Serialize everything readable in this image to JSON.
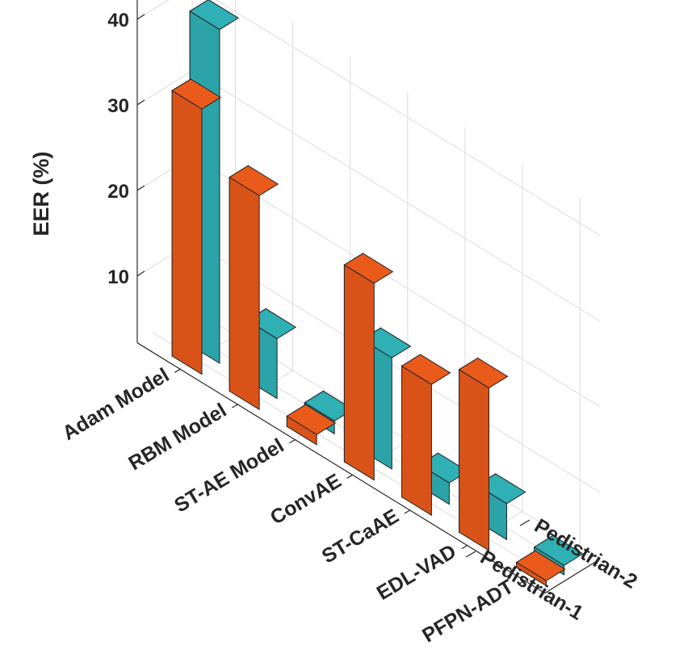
{
  "chart_data": {
    "type": "bar3d",
    "title": "",
    "ylabel": "EER (%)",
    "categories": [
      "Adam Model",
      "RBM Model",
      "ST-AE Model",
      "ConvAE",
      "ST-CaAE",
      "EDL-VAD",
      "PFPN-ADT"
    ],
    "series": [
      {
        "name": "Pedistrian-1",
        "color": "#d95319",
        "values": [
          31,
          25,
          1.2,
          23,
          15.3,
          19,
          0.6
        ]
      },
      {
        "name": "Pedistrian-2",
        "color": "#2ba3a8",
        "values": [
          39,
          7,
          1.5,
          13,
          2.5,
          4.2,
          1.1
        ]
      }
    ],
    "zticks": [
      10,
      20,
      30,
      40
    ],
    "zlim": [
      0,
      43
    ],
    "grid": true
  }
}
